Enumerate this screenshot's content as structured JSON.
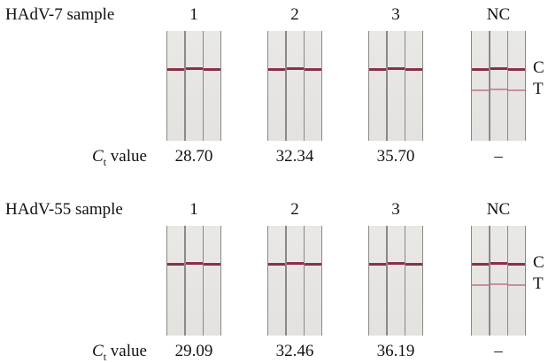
{
  "ct_label": {
    "main": "C",
    "sub": "t",
    "rest": "value"
  },
  "band_labels": [
    "C",
    "T"
  ],
  "panels": [
    {
      "title": "HAdV-7 sample",
      "columns": [
        "1",
        "2",
        "3",
        "NC"
      ],
      "ct_values": [
        "28.70",
        "32.34",
        "35.70",
        "–"
      ]
    },
    {
      "title": "HAdV-55 sample",
      "columns": [
        "1",
        "2",
        "3",
        "NC"
      ],
      "ct_values": [
        "29.09",
        "32.46",
        "36.19",
        "–"
      ]
    }
  ]
}
